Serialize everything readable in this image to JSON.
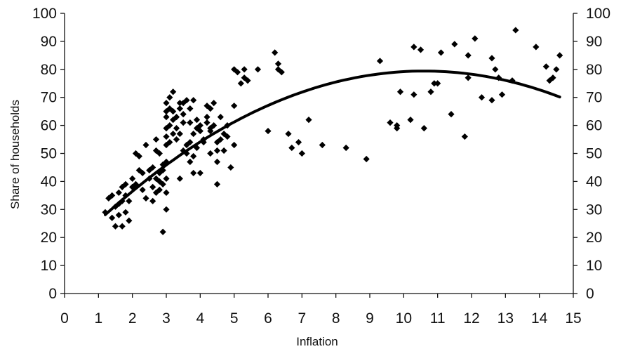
{
  "chart_data": {
    "type": "scatter",
    "title": "",
    "xlabel": "Inflation",
    "ylabel": "Share of households",
    "xlim": [
      0,
      15
    ],
    "ylim": [
      0,
      100
    ],
    "x_ticks": [
      "0",
      "1",
      "2",
      "3",
      "4",
      "5",
      "6",
      "7",
      "8",
      "9",
      "10",
      "11",
      "12",
      "13",
      "14",
      "15"
    ],
    "y_ticks": [
      "0",
      "10",
      "20",
      "30",
      "40",
      "50",
      "60",
      "70",
      "80",
      "90",
      "100"
    ],
    "secondary_y_axis": true,
    "grid": false,
    "legend": "none",
    "marker": "diamond",
    "marker_color": "#000000",
    "points": [
      [
        1.2,
        29
      ],
      [
        1.3,
        34
      ],
      [
        1.4,
        27
      ],
      [
        1.4,
        35
      ],
      [
        1.5,
        24
      ],
      [
        1.5,
        31
      ],
      [
        1.6,
        28
      ],
      [
        1.6,
        32
      ],
      [
        1.6,
        36
      ],
      [
        1.7,
        24
      ],
      [
        1.7,
        33
      ],
      [
        1.7,
        38
      ],
      [
        1.8,
        29
      ],
      [
        1.8,
        35
      ],
      [
        1.8,
        39
      ],
      [
        1.9,
        26
      ],
      [
        1.9,
        33
      ],
      [
        2.0,
        38
      ],
      [
        2.0,
        41
      ],
      [
        2.1,
        39
      ],
      [
        2.1,
        50
      ],
      [
        2.2,
        44
      ],
      [
        2.2,
        49
      ],
      [
        2.3,
        37
      ],
      [
        2.3,
        43
      ],
      [
        2.4,
        53
      ],
      [
        2.4,
        34
      ],
      [
        2.5,
        41
      ],
      [
        2.5,
        44
      ],
      [
        2.6,
        33
      ],
      [
        2.6,
        38
      ],
      [
        2.6,
        45
      ],
      [
        2.7,
        36
      ],
      [
        2.7,
        41
      ],
      [
        2.7,
        51
      ],
      [
        2.7,
        55
      ],
      [
        2.8,
        40
      ],
      [
        2.8,
        43
      ],
      [
        2.8,
        37
      ],
      [
        2.8,
        50
      ],
      [
        2.9,
        39
      ],
      [
        2.9,
        44
      ],
      [
        2.9,
        46
      ],
      [
        2.9,
        22
      ],
      [
        3.0,
        30
      ],
      [
        3.0,
        36
      ],
      [
        3.0,
        41
      ],
      [
        3.0,
        47
      ],
      [
        3.0,
        53
      ],
      [
        3.0,
        56
      ],
      [
        3.0,
        59
      ],
      [
        3.0,
        63
      ],
      [
        3.0,
        65
      ],
      [
        3.0,
        68
      ],
      [
        3.1,
        54
      ],
      [
        3.1,
        60
      ],
      [
        3.1,
        66
      ],
      [
        3.1,
        70
      ],
      [
        3.2,
        57
      ],
      [
        3.2,
        62
      ],
      [
        3.2,
        65
      ],
      [
        3.2,
        72
      ],
      [
        3.3,
        55
      ],
      [
        3.3,
        59
      ],
      [
        3.3,
        63
      ],
      [
        3.4,
        57
      ],
      [
        3.4,
        66
      ],
      [
        3.4,
        68
      ],
      [
        3.4,
        41
      ],
      [
        3.5,
        61
      ],
      [
        3.5,
        64
      ],
      [
        3.5,
        68
      ],
      [
        3.5,
        51
      ],
      [
        3.6,
        53
      ],
      [
        3.6,
        50
      ],
      [
        3.6,
        69
      ],
      [
        3.7,
        54
      ],
      [
        3.7,
        47
      ],
      [
        3.7,
        61
      ],
      [
        3.7,
        66
      ],
      [
        3.8,
        57
      ],
      [
        3.8,
        49
      ],
      [
        3.8,
        43
      ],
      [
        3.8,
        69
      ],
      [
        3.9,
        59
      ],
      [
        3.9,
        62
      ],
      [
        3.9,
        52
      ],
      [
        4.0,
        58
      ],
      [
        4.0,
        60
      ],
      [
        4.0,
        43
      ],
      [
        4.1,
        54
      ],
      [
        4.1,
        55
      ],
      [
        4.2,
        67
      ],
      [
        4.2,
        63
      ],
      [
        4.2,
        61
      ],
      [
        4.3,
        58
      ],
      [
        4.3,
        59
      ],
      [
        4.3,
        66
      ],
      [
        4.3,
        50
      ],
      [
        4.4,
        68
      ],
      [
        4.4,
        60
      ],
      [
        4.5,
        54
      ],
      [
        4.5,
        51
      ],
      [
        4.5,
        39
      ],
      [
        4.5,
        47
      ],
      [
        4.6,
        63
      ],
      [
        4.6,
        55
      ],
      [
        4.7,
        51
      ],
      [
        4.7,
        57
      ],
      [
        4.8,
        56
      ],
      [
        4.8,
        60
      ],
      [
        4.9,
        45
      ],
      [
        5.0,
        53
      ],
      [
        5.0,
        80
      ],
      [
        5.0,
        67
      ],
      [
        5.1,
        79
      ],
      [
        5.2,
        75
      ],
      [
        5.3,
        77
      ],
      [
        5.3,
        80
      ],
      [
        5.4,
        76
      ],
      [
        5.7,
        80
      ],
      [
        6.0,
        58
      ],
      [
        6.2,
        86
      ],
      [
        6.3,
        80
      ],
      [
        6.3,
        82
      ],
      [
        6.4,
        79
      ],
      [
        6.6,
        57
      ],
      [
        6.7,
        52
      ],
      [
        6.9,
        54
      ],
      [
        7.0,
        50
      ],
      [
        7.2,
        62
      ],
      [
        7.6,
        53
      ],
      [
        8.3,
        52
      ],
      [
        8.9,
        48
      ],
      [
        9.3,
        83
      ],
      [
        9.6,
        61
      ],
      [
        9.8,
        60
      ],
      [
        9.8,
        59
      ],
      [
        9.9,
        72
      ],
      [
        10.2,
        62
      ],
      [
        10.3,
        71
      ],
      [
        10.3,
        88
      ],
      [
        10.5,
        87
      ],
      [
        10.6,
        59
      ],
      [
        10.8,
        72
      ],
      [
        10.9,
        75
      ],
      [
        11.0,
        75
      ],
      [
        11.1,
        86
      ],
      [
        11.4,
        64
      ],
      [
        11.5,
        89
      ],
      [
        11.8,
        56
      ],
      [
        11.9,
        77
      ],
      [
        11.9,
        85
      ],
      [
        12.1,
        91
      ],
      [
        12.3,
        70
      ],
      [
        12.6,
        69
      ],
      [
        12.6,
        84
      ],
      [
        12.7,
        80
      ],
      [
        12.8,
        77
      ],
      [
        12.9,
        71
      ],
      [
        13.2,
        76
      ],
      [
        13.3,
        94
      ],
      [
        13.9,
        88
      ],
      [
        14.2,
        81
      ],
      [
        14.3,
        76
      ],
      [
        14.4,
        77
      ],
      [
        14.5,
        80
      ],
      [
        14.6,
        85
      ]
    ],
    "trend": {
      "type": "quadratic",
      "x_range": [
        1.2,
        14.6
      ],
      "coefficients": [
        14.2,
        12.3,
        -0.58
      ]
    }
  }
}
